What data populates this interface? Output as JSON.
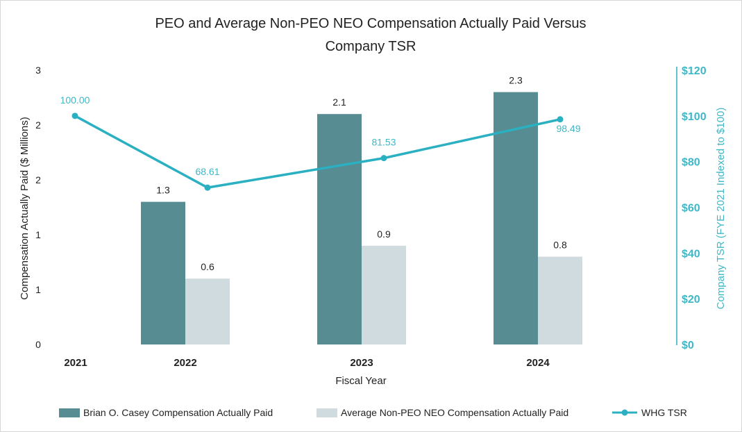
{
  "chart_data": {
    "type": "bar+line",
    "title": "PEO and Average Non-PEO NEO Compensation Actually Paid Versus Company TSR",
    "title_lines": [
      "PEO and Average Non-PEO NEO Compensation Actually Paid Versus",
      "Company TSR"
    ],
    "xlabel": "Fiscal Year",
    "ylabel": "Compensation Actually Paid ($ Millions)",
    "y2label": "Company TSR (FYE 2021 Indexed to $100)",
    "categories": [
      "2021",
      "2022",
      "2023",
      "2024"
    ],
    "ylim": [
      0,
      2.5
    ],
    "y_ticks": [
      0,
      0.5,
      1,
      1.5,
      2,
      2.5
    ],
    "y_tick_labels": [
      "0",
      "1",
      "1",
      "2",
      "2",
      "3"
    ],
    "y2lim": [
      0,
      120
    ],
    "y2_ticks": [
      0,
      20,
      40,
      60,
      80,
      100,
      120
    ],
    "y2_tick_labels": [
      "$0",
      "$20",
      "$40",
      "$60",
      "$80",
      "$100",
      "$120"
    ],
    "grid": false,
    "legend_position": "bottom",
    "series": [
      {
        "name": "Brian O. Casey Compensation Actually Paid",
        "type": "bar",
        "color": "#568c92",
        "values": [
          null,
          1.3,
          2.1,
          2.3
        ],
        "labels": [
          "",
          "1.3",
          "2.1",
          "2.3"
        ]
      },
      {
        "name": "Average Non-PEO NEO Compensation Actually Paid",
        "type": "bar",
        "color": "#cfdbdf",
        "values": [
          null,
          0.6,
          0.9,
          0.8
        ],
        "labels": [
          "",
          "0.6",
          "0.9",
          "0.8"
        ]
      },
      {
        "name": "WHG TSR",
        "type": "line",
        "axis": "right",
        "color": "#2bb0c2",
        "values": [
          100.0,
          68.61,
          81.53,
          98.49
        ],
        "labels": [
          "100.00",
          "68.61",
          "81.53",
          "98.49"
        ]
      }
    ]
  }
}
